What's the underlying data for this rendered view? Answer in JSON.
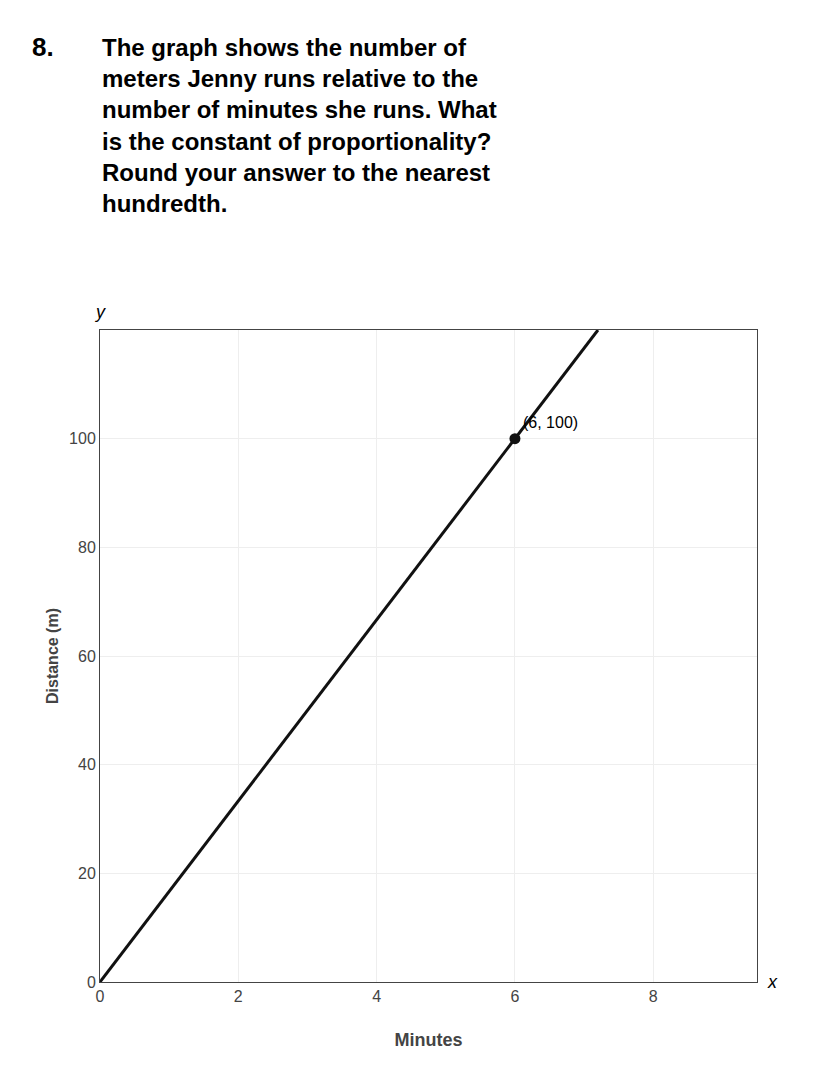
{
  "chart_data": {
    "type": "line",
    "title": "8.",
    "subtitle": "The graph shows the number of\nmeters Jenny runs relative to the\nnumber of minutes she runs. What\nis the constant of proportionality?\nRound your answer to the nearest\nhundredth.",
    "x_label": "Minutes",
    "y_label": "Distance (m)",
    "axis_letters": {
      "x": "x",
      "y": "y"
    },
    "x": [
      0,
      7.2
    ],
    "values": [
      0,
      120
    ],
    "color": "#111111",
    "points": [
      {
        "x": 6,
        "y": 100,
        "label": "(6, 100)",
        "color": "#111111"
      }
    ],
    "xlim": [
      0,
      9.5
    ],
    "ylim": [
      0,
      120
    ],
    "xticks": [
      0,
      2,
      4,
      6,
      8
    ],
    "yticks": [
      0,
      20,
      40,
      60,
      80,
      100
    ],
    "grid": true
  }
}
